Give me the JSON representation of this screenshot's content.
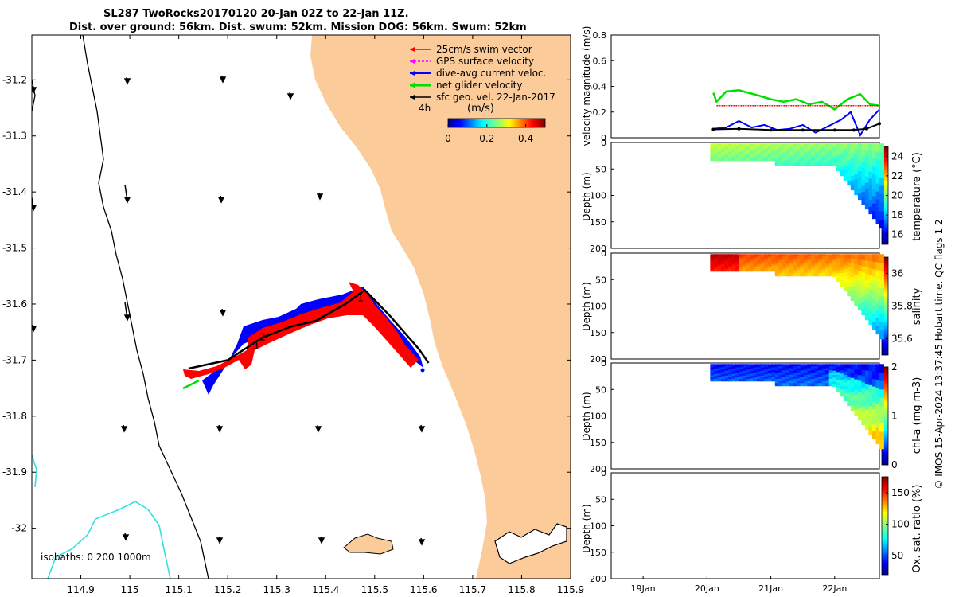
{
  "title": {
    "line1": "SL287 TwoRocks20170120 20-Jan 02Z to 22-Jan 11Z.",
    "line2": "Dist. over ground: 56km. Dist. swum: 52km. Mission DOG: 56km. Swum: 52km"
  },
  "colors": {
    "land": "#fbcb9a",
    "swim": "#ff0000",
    "gps": "#ff00ff",
    "current": "#0000ff",
    "net": "#00e000",
    "geo": "#000000",
    "isobath": "#33e0e0"
  },
  "chart_data": [
    {
      "type": "map",
      "name": "glider-track-map",
      "xlim": [
        114.8,
        115.9
      ],
      "ylim": [
        -32.09,
        -31.12
      ],
      "x_ticks": [
        114.9,
        115,
        115.1,
        115.2,
        115.3,
        115.4,
        115.5,
        115.6,
        115.7,
        115.8,
        115.9
      ],
      "x_tick_labels": [
        "114.9",
        "115",
        "115.1",
        "115.2",
        "115.3",
        "115.4",
        "115.5",
        "115.6",
        "115.7",
        "115.8",
        "115.9"
      ],
      "y_ticks": [
        -31.2,
        -31.3,
        -31.4,
        -31.5,
        -31.6,
        -31.7,
        -31.8,
        -31.9,
        -32
      ],
      "y_tick_labels": [
        "-31.2",
        "-31.3",
        "-31.4",
        "-31.5",
        "-31.6",
        "-31.7",
        "-31.8",
        "-31.9",
        "-32"
      ],
      "legend": [
        {
          "label": "25cm/s swim vector",
          "color": "#ff0000"
        },
        {
          "label": "GPS surface velocity",
          "color": "#ff00ff"
        },
        {
          "label": "dive-avg current veloc.",
          "color": "#0000ff"
        },
        {
          "label": "net glider velocity",
          "color": "#00e000"
        },
        {
          "label": "sfc geo. vel. 22-Jan-2017",
          "color": "#000000"
        }
      ],
      "colorbar": {
        "label": "(m/s)",
        "ticks": [
          0,
          0.2,
          0.4
        ],
        "tick_labels": [
          "0",
          "0.2",
          "0.4"
        ],
        "range": [
          0,
          0.5
        ]
      },
      "track_lon": [
        115.12,
        115.2,
        115.27,
        115.33,
        115.38,
        115.44,
        115.48,
        115.53,
        115.59,
        115.61
      ],
      "track_lat": [
        -31.715,
        -31.7,
        -31.66,
        -31.64,
        -31.63,
        -31.6,
        -31.575,
        -31.62,
        -31.68,
        -31.705
      ],
      "track_labels": [
        {
          "text": "1",
          "lon": 115.465,
          "lat": -31.595
        },
        {
          "text": "2",
          "lon": 115.265,
          "lat": -31.665
        },
        {
          "text": "3",
          "lon": 115.25,
          "lat": -31.68
        }
      ],
      "marker_4h": "4h",
      "isobaths_label": "isobaths: 0   200  1000m"
    },
    {
      "type": "line",
      "name": "velocity-magnitude",
      "ylabel": "velocity magnitude (m/s)",
      "ylim": [
        0,
        0.8
      ],
      "y_ticks": [
        0,
        0.2,
        0.4,
        0.6,
        0.8
      ],
      "y_tick_labels": [
        "0",
        "0.2",
        "0.4",
        "0.6",
        "0.8"
      ],
      "xlim_days": [
        18.5,
        22.7
      ],
      "series": [
        {
          "name": "net glider velocity",
          "color": "#00e000",
          "x": [
            20.1,
            20.15,
            20.3,
            20.5,
            20.8,
            21.0,
            21.2,
            21.4,
            21.6,
            21.8,
            22.0,
            22.2,
            22.4,
            22.55,
            22.7
          ],
          "y": [
            0.35,
            0.28,
            0.36,
            0.37,
            0.33,
            0.3,
            0.28,
            0.3,
            0.26,
            0.28,
            0.22,
            0.3,
            0.34,
            0.26,
            0.25
          ]
        },
        {
          "name": "dive-avg current veloc.",
          "color": "#0000ff",
          "x": [
            20.1,
            20.3,
            20.5,
            20.7,
            20.9,
            21.1,
            21.3,
            21.5,
            21.7,
            21.9,
            22.1,
            22.25,
            22.4,
            22.55,
            22.7
          ],
          "y": [
            0.07,
            0.08,
            0.13,
            0.08,
            0.1,
            0.06,
            0.07,
            0.1,
            0.04,
            0.09,
            0.14,
            0.2,
            0.02,
            0.14,
            0.22
          ]
        },
        {
          "name": "sfc geo. vel.",
          "color": "#000000",
          "x": [
            20.1,
            20.5,
            21.0,
            21.5,
            22.0,
            22.3,
            22.5,
            22.7
          ],
          "y": [
            0.065,
            0.07,
            0.06,
            0.06,
            0.06,
            0.06,
            0.07,
            0.11
          ]
        },
        {
          "name": "25cm/s swim vector",
          "color": "#ff0000",
          "x": [
            20.15,
            22.7
          ],
          "y": [
            0.25,
            0.25
          ]
        }
      ]
    },
    {
      "type": "heatmap",
      "name": "temperature-section",
      "ylabel": "Depth (m)",
      "ylim": [
        0,
        200
      ],
      "y_ticks": [
        0,
        50,
        100,
        150,
        200
      ],
      "y_tick_labels": [
        "0",
        "50",
        "100",
        "150",
        "200"
      ],
      "colorbar_label": "temperature (°C)",
      "colorbar_ticks": [
        16,
        18,
        20,
        22,
        24
      ],
      "colorbar_tick_labels": [
        "16",
        "18",
        "20",
        "22",
        "24"
      ],
      "crange": [
        15,
        25
      ],
      "surface_value": 20.7,
      "deep_value": 17.0
    },
    {
      "type": "heatmap",
      "name": "salinity-section",
      "ylabel": "Depth (m)",
      "ylim": [
        0,
        200
      ],
      "y_ticks": [
        0,
        50,
        100,
        150,
        200
      ],
      "y_tick_labels": [
        "0",
        "50",
        "100",
        "150",
        "200"
      ],
      "colorbar_label": "salinity",
      "colorbar_ticks": [
        35.6,
        35.8,
        36
      ],
      "colorbar_tick_labels": [
        "35.6",
        "35.8",
        "36"
      ],
      "crange": [
        35.5,
        36.1
      ],
      "surface_value": 36.0,
      "deep_value": 35.75
    },
    {
      "type": "heatmap",
      "name": "chla-section",
      "ylabel": "Depth (m)",
      "ylim": [
        0,
        200
      ],
      "y_ticks": [
        0,
        50,
        100,
        150,
        200
      ],
      "y_tick_labels": [
        "0",
        "50",
        "100",
        "150",
        "200"
      ],
      "colorbar_label": "chl-a (mg m-3)",
      "colorbar_ticks": [
        0,
        1,
        2
      ],
      "colorbar_tick_labels": [
        "0",
        "1",
        "2"
      ],
      "crange": [
        0,
        2
      ],
      "surface_value": 0.35,
      "deep_value": 0.6
    },
    {
      "type": "heatmap",
      "name": "oxygen-section",
      "ylabel": "Depth (m)",
      "ylim": [
        0,
        200
      ],
      "y_ticks": [
        0,
        50,
        100,
        150,
        200
      ],
      "y_tick_labels": [
        "0",
        "50",
        "100",
        "150",
        "200"
      ],
      "colorbar_label": "Ox. sat. ratio (%)",
      "colorbar_ticks": [
        50,
        100,
        150
      ],
      "colorbar_tick_labels": [
        "50",
        "100",
        "150"
      ],
      "crange": [
        20,
        175
      ],
      "x_ticks_days": [
        19,
        20,
        21,
        22
      ],
      "x_tick_labels": [
        "19Jan",
        "20Jan",
        "21Jan",
        "22Jan"
      ]
    }
  ],
  "credit": "© IMOS 15-Apr-2024 13:37:45 Hobart time. QC flags 1  2"
}
